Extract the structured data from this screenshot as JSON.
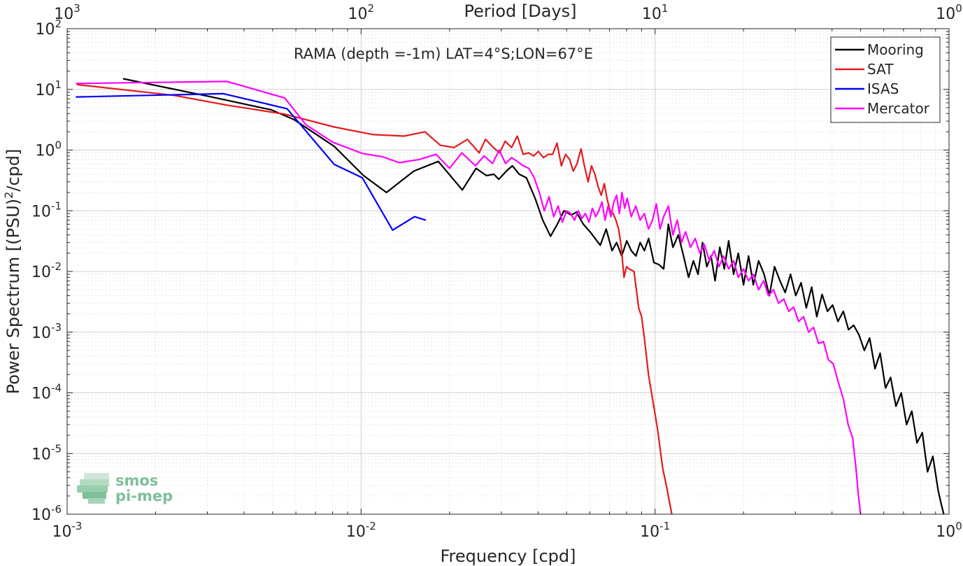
{
  "chart_data": {
    "type": "line",
    "annotation": "RAMA (depth =-1m) LAT=4°S;LON=67°E",
    "xlabel": "Frequency [cpd]",
    "ylabel": "Power Spectrum [(PSU)",
    "ylabel_sup": "2",
    "ylabel_end": "/cpd]",
    "top_xlabel": "Period [Days]",
    "x_scale": "log",
    "y_scale": "log",
    "xlim": [
      0.001,
      1
    ],
    "ylim": [
      1e-06,
      100
    ],
    "grid": true,
    "minor_grid": true,
    "legend_position": "top-right",
    "x_ticks": [
      {
        "base": "10",
        "exp": "-3"
      },
      {
        "base": "10",
        "exp": "-2"
      },
      {
        "base": "10",
        "exp": "-1"
      },
      {
        "base": "10",
        "exp": "0"
      }
    ],
    "top_ticks": [
      {
        "base": "10",
        "exp": "3"
      },
      {
        "base": "10",
        "exp": "2"
      },
      {
        "base": "10",
        "exp": "1"
      },
      {
        "base": "10",
        "exp": "0"
      }
    ],
    "y_ticks": [
      {
        "base": "10",
        "exp": "-6"
      },
      {
        "base": "10",
        "exp": "-5"
      },
      {
        "base": "10",
        "exp": "-4"
      },
      {
        "base": "10",
        "exp": "-3"
      },
      {
        "base": "10",
        "exp": "-2"
      },
      {
        "base": "10",
        "exp": "-1"
      },
      {
        "base": "10",
        "exp": "0"
      },
      {
        "base": "10",
        "exp": "1"
      },
      {
        "base": "10",
        "exp": "2"
      }
    ],
    "series": [
      {
        "name": "Mooring",
        "color": "#000000",
        "x": [
          0.00155,
          0.0031,
          0.00495,
          0.0059,
          0.0081,
          0.0102,
          0.0122,
          0.0151,
          0.0183,
          0.0221,
          0.0246,
          0.0267,
          0.0283,
          0.0294,
          0.0312,
          0.0327,
          0.0345,
          0.0365,
          0.0391,
          0.0415,
          0.0441,
          0.0465,
          0.049,
          0.0519,
          0.054,
          0.057,
          0.0601,
          0.0625,
          0.0651,
          0.0682,
          0.0714,
          0.074,
          0.077,
          0.0801,
          0.083,
          0.0861,
          0.089,
          0.092,
          0.0951,
          0.0991,
          0.103,
          0.107,
          0.111,
          0.115,
          0.12,
          0.125,
          0.13,
          0.135,
          0.14,
          0.145,
          0.15,
          0.155,
          0.16,
          0.166,
          0.172,
          0.178,
          0.185,
          0.192,
          0.2,
          0.208,
          0.216,
          0.225,
          0.235,
          0.245,
          0.255,
          0.266,
          0.277,
          0.289,
          0.301,
          0.314,
          0.327,
          0.341,
          0.355,
          0.37,
          0.386,
          0.402,
          0.419,
          0.437,
          0.455,
          0.474,
          0.494,
          0.515,
          0.537,
          0.56,
          0.583,
          0.608,
          0.633,
          0.66,
          0.688,
          0.717,
          0.747,
          0.778,
          0.811,
          0.845,
          0.881,
          0.918,
          0.94,
          0.96
        ],
        "y": [
          15,
          7.5,
          4.6,
          3.2,
          1.15,
          0.38,
          0.2,
          0.45,
          0.65,
          0.22,
          0.5,
          0.38,
          0.4,
          0.33,
          0.45,
          0.55,
          0.4,
          0.35,
          0.16,
          0.07,
          0.038,
          0.06,
          0.1,
          0.085,
          0.095,
          0.06,
          0.045,
          0.035,
          0.027,
          0.05,
          0.022,
          0.03,
          0.018,
          0.032,
          0.022,
          0.018,
          0.03,
          0.022,
          0.035,
          0.014,
          0.013,
          0.011,
          0.06,
          0.025,
          0.04,
          0.018,
          0.008,
          0.015,
          0.009,
          0.03,
          0.012,
          0.018,
          0.007,
          0.025,
          0.011,
          0.032,
          0.009,
          0.02,
          0.006,
          0.018,
          0.006,
          0.015,
          0.009,
          0.004,
          0.012,
          0.007,
          0.0045,
          0.009,
          0.004,
          0.0065,
          0.0025,
          0.0055,
          0.0018,
          0.0042,
          0.0022,
          0.0028,
          0.0015,
          0.0022,
          0.0011,
          0.0013,
          0.0009,
          0.0005,
          0.0008,
          0.00025,
          0.00045,
          0.00012,
          0.00018,
          6e-05,
          0.0001,
          3e-05,
          5e-05,
          1.5e-05,
          2.2e-05,
          5e-06,
          9e-06,
          2.5e-06,
          1.5e-06,
          1e-06
        ]
      },
      {
        "name": "SAT",
        "color": "#e41a1c",
        "x": [
          0.00108,
          0.0023,
          0.0035,
          0.0055,
          0.0081,
          0.011,
          0.014,
          0.0165,
          0.0186,
          0.0207,
          0.023,
          0.0252,
          0.0265,
          0.0282,
          0.0296,
          0.0309,
          0.0325,
          0.034,
          0.0356,
          0.0372,
          0.0386,
          0.0401,
          0.0417,
          0.0433,
          0.0448,
          0.0464,
          0.048,
          0.0496,
          0.0512,
          0.0527,
          0.0543,
          0.056,
          0.0575,
          0.0592,
          0.0608,
          0.0624,
          0.064,
          0.0656,
          0.0672,
          0.0688,
          0.0704,
          0.072,
          0.0736,
          0.0752,
          0.0768,
          0.0784,
          0.08,
          0.0816,
          0.0848,
          0.088,
          0.09,
          0.092,
          0.095,
          0.0985,
          0.102,
          0.106,
          0.11,
          0.114
        ],
        "y": [
          12,
          8,
          5.5,
          3.9,
          2.4,
          1.8,
          1.7,
          2.0,
          1.2,
          1.1,
          1.5,
          0.9,
          1.5,
          1.1,
          0.9,
          1.4,
          1.1,
          1.7,
          0.85,
          0.9,
          0.8,
          0.95,
          0.75,
          0.85,
          0.85,
          1.3,
          0.55,
          0.85,
          0.7,
          0.45,
          0.6,
          1.05,
          0.55,
          0.3,
          0.55,
          0.4,
          0.25,
          0.18,
          0.28,
          0.15,
          0.1,
          0.09,
          0.07,
          0.05,
          0.025,
          0.008,
          0.012,
          0.011,
          0.01,
          0.0025,
          0.0018,
          0.0008,
          0.0002,
          7e-05,
          2.5e-05,
          6e-06,
          2.5e-06,
          1e-06
        ]
      },
      {
        "name": "ISAS",
        "color": "#0000ff",
        "x": [
          0.00107,
          0.0034,
          0.0056,
          0.0081,
          0.0101,
          0.0128,
          0.0152,
          0.0166
        ],
        "y": [
          7.5,
          8.5,
          4.8,
          0.58,
          0.35,
          0.048,
          0.08,
          0.07
        ]
      },
      {
        "name": "Mercator",
        "color": "#ff00ff",
        "x": [
          0.00107,
          0.0035,
          0.0055,
          0.0065,
          0.008,
          0.0101,
          0.0118,
          0.0135,
          0.0158,
          0.018,
          0.02,
          0.022,
          0.0245,
          0.0262,
          0.028,
          0.0295,
          0.031,
          0.0325,
          0.034,
          0.0356,
          0.0372,
          0.0388,
          0.0404,
          0.042,
          0.0436,
          0.0452,
          0.0468,
          0.0484,
          0.05,
          0.0516,
          0.0532,
          0.0548,
          0.0564,
          0.058,
          0.0596,
          0.0612,
          0.0628,
          0.0644,
          0.066,
          0.0676,
          0.0692,
          0.0708,
          0.0724,
          0.074,
          0.0756,
          0.0772,
          0.0788,
          0.0804,
          0.083,
          0.086,
          0.089,
          0.092,
          0.095,
          0.098,
          0.101,
          0.104,
          0.107,
          0.111,
          0.115,
          0.119,
          0.123,
          0.127,
          0.132,
          0.137,
          0.142,
          0.147,
          0.153,
          0.159,
          0.165,
          0.171,
          0.178,
          0.185,
          0.192,
          0.2,
          0.208,
          0.216,
          0.225,
          0.234,
          0.243,
          0.253,
          0.263,
          0.274,
          0.285,
          0.296,
          0.308,
          0.32,
          0.333,
          0.346,
          0.36,
          0.374,
          0.389,
          0.404,
          0.42,
          0.437,
          0.454,
          0.47,
          0.482,
          0.492,
          0.5
        ],
        "y": [
          12.5,
          13.5,
          7.2,
          2.6,
          1.35,
          0.88,
          0.78,
          0.62,
          0.7,
          0.85,
          0.5,
          0.9,
          0.55,
          0.8,
          0.6,
          1.0,
          0.6,
          0.75,
          0.65,
          0.55,
          0.5,
          0.35,
          0.2,
          0.1,
          0.17,
          0.08,
          0.12,
          0.065,
          0.1,
          0.09,
          0.07,
          0.1,
          0.075,
          0.09,
          0.065,
          0.11,
          0.08,
          0.1,
          0.14,
          0.07,
          0.12,
          0.08,
          0.14,
          0.18,
          0.09,
          0.2,
          0.11,
          0.16,
          0.08,
          0.12,
          0.07,
          0.09,
          0.05,
          0.07,
          0.13,
          0.05,
          0.08,
          0.12,
          0.04,
          0.07,
          0.03,
          0.045,
          0.025,
          0.035,
          0.02,
          0.028,
          0.015,
          0.022,
          0.012,
          0.018,
          0.011,
          0.015,
          0.008,
          0.011,
          0.007,
          0.009,
          0.005,
          0.007,
          0.004,
          0.005,
          0.003,
          0.0035,
          0.0022,
          0.0026,
          0.0015,
          0.0018,
          0.001,
          0.0012,
          0.00065,
          0.0007,
          0.00035,
          0.0003,
          0.00015,
          8e-05,
          3e-05,
          1.8e-05,
          6e-06,
          2e-06,
          1e-06
        ]
      }
    ]
  },
  "watermark": {
    "text_line1": "smos",
    "text_line2": "pi-mep",
    "color": "#7fbf9a"
  }
}
